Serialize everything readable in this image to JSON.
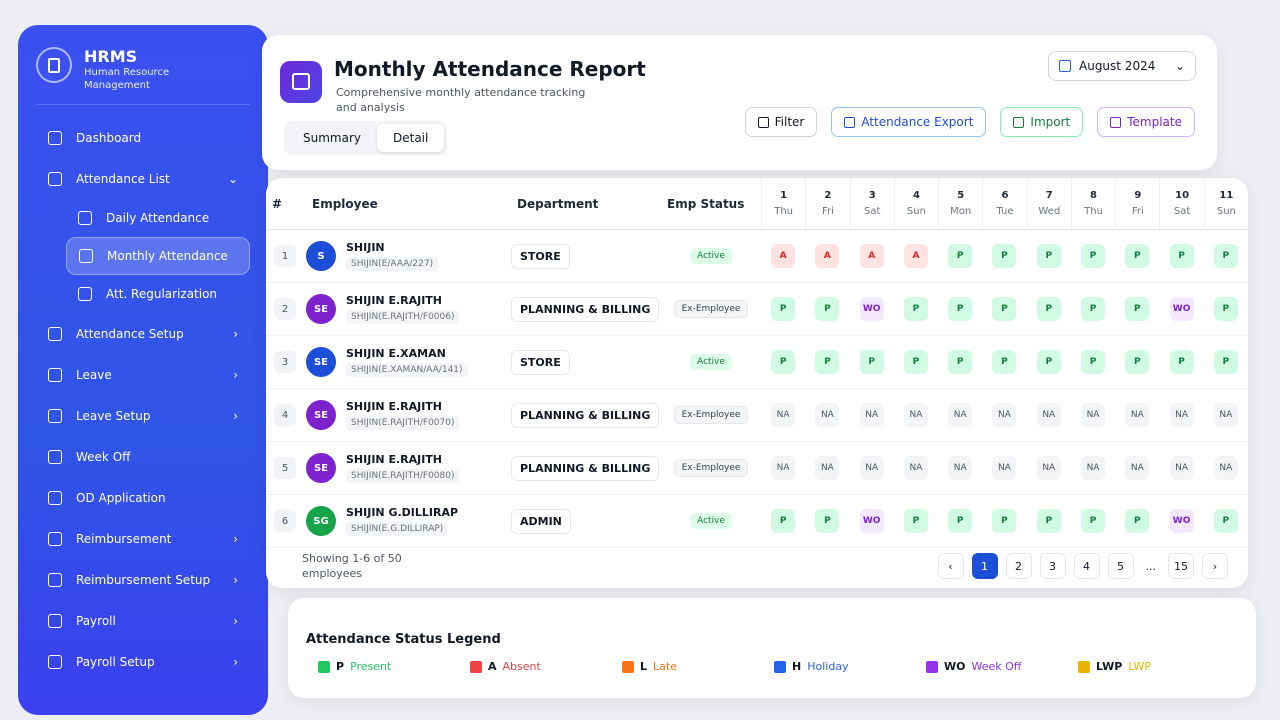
{
  "sidebar": {
    "brand": "HRMS",
    "tagline": "Human Resource Management",
    "nav": [
      {
        "label": "Dashboard"
      },
      {
        "label": "Attendance List",
        "expanded": true,
        "children": [
          {
            "label": "Daily Attendance"
          },
          {
            "label": "Monthly Attendance",
            "active": true
          },
          {
            "label": "Att. Regularization"
          }
        ]
      },
      {
        "label": "Attendance Setup",
        "submenu": true
      },
      {
        "label": "Leave",
        "submenu": true
      },
      {
        "label": "Leave Setup",
        "submenu": true
      },
      {
        "label": "Week Off"
      },
      {
        "label": "OD Application"
      },
      {
        "label": "Reimbursement",
        "submenu": true
      },
      {
        "label": "Reimbursement Setup",
        "submenu": true
      },
      {
        "label": "Payroll",
        "submenu": true
      },
      {
        "label": "Payroll Setup",
        "submenu": true
      }
    ]
  },
  "header": {
    "title": "Monthly Attendance Report",
    "subtitle": "Comprehensive monthly attendance tracking and analysis",
    "month": "August 2024",
    "tabs": [
      "Summary",
      "Detail"
    ],
    "active_tab": 1,
    "buttons": [
      "Filter",
      "Attendance Export",
      "Import",
      "Template"
    ]
  },
  "table": {
    "columns": [
      "#",
      "Employee",
      "Department",
      "Emp Status"
    ],
    "days": [
      {
        "day": "1",
        "weekday": "Thu"
      },
      {
        "day": "2",
        "weekday": "Fri"
      },
      {
        "day": "3",
        "weekday": "Sat"
      },
      {
        "day": "4",
        "weekday": "Sun"
      },
      {
        "day": "5",
        "weekday": "Mon"
      },
      {
        "day": "6",
        "weekday": "Tue"
      },
      {
        "day": "7",
        "weekday": "Wed"
      },
      {
        "day": "8",
        "weekday": "Thu"
      },
      {
        "day": "9",
        "weekday": "Fri"
      },
      {
        "day": "10",
        "weekday": "Sat"
      },
      {
        "day": "11",
        "weekday": "Sun"
      }
    ],
    "rows": [
      {
        "index": "1",
        "initials": "S",
        "avatar_color": "#1d4ed8",
        "name": "SHIJIN",
        "code": "SHIJIN(E/AAA/227)",
        "department": "STORE",
        "status": "Active",
        "marks": [
          "A",
          "A",
          "A",
          "A",
          "P",
          "P",
          "P",
          "P",
          "P",
          "P",
          "P"
        ]
      },
      {
        "index": "2",
        "initials": "SE",
        "avatar_color": "#7e22ce",
        "name": "SHIJIN E.RAJITH",
        "code": "SHIJIN(E.RAJITH/F0006)",
        "department": "PLANNING & BILLING",
        "status": "Ex-Employee",
        "marks": [
          "P",
          "P",
          "WO",
          "P",
          "P",
          "P",
          "P",
          "P",
          "P",
          "WO",
          "P"
        ]
      },
      {
        "index": "3",
        "initials": "SE",
        "avatar_color": "#1d4ed8",
        "name": "SHIJIN E.XAMAN",
        "code": "SHIJIN(E.XAMAN/AA/141)",
        "department": "STORE",
        "status": "Active",
        "marks": [
          "P",
          "P",
          "P",
          "P",
          "P",
          "P",
          "P",
          "P",
          "P",
          "P",
          "P"
        ]
      },
      {
        "index": "4",
        "initials": "SE",
        "avatar_color": "#7e22ce",
        "name": "SHIJIN E.RAJITH",
        "code": "SHIJIN(E.RAJITH/F0070)",
        "department": "PLANNING & BILLING",
        "status": "Ex-Employee",
        "marks": [
          "NA",
          "NA",
          "NA",
          "NA",
          "NA",
          "NA",
          "NA",
          "NA",
          "NA",
          "NA",
          "NA"
        ]
      },
      {
        "index": "5",
        "initials": "SE",
        "avatar_color": "#7e22ce",
        "name": "SHIJIN E.RAJITH",
        "code": "SHIJIN(E.RAJITH/F0080)",
        "department": "PLANNING & BILLING",
        "status": "Ex-Employee",
        "marks": [
          "NA",
          "NA",
          "NA",
          "NA",
          "NA",
          "NA",
          "NA",
          "NA",
          "NA",
          "NA",
          "NA"
        ]
      },
      {
        "index": "6",
        "initials": "SG",
        "avatar_color": "#16a34a",
        "name": "SHIJIN G.DILLIRAP",
        "code": "SHIJIN(E.G.DILLIRAP)",
        "department": "ADMIN",
        "status": "Active",
        "marks": [
          "P",
          "P",
          "WO",
          "P",
          "P",
          "P",
          "P",
          "P",
          "P",
          "WO",
          "P"
        ]
      }
    ],
    "summary": "Showing 1-6 of 50 employees",
    "pages": [
      "1",
      "2",
      "3",
      "4",
      "5",
      "...",
      "15"
    ],
    "current_page": 0
  },
  "legend": {
    "title": "Attendance Status Legend",
    "items": [
      {
        "code": "P",
        "label": "Present",
        "color": "#22c55e"
      },
      {
        "code": "A",
        "label": "Absent",
        "color": "#ef4444"
      },
      {
        "code": "L",
        "label": "Late",
        "color": "#f97316"
      },
      {
        "code": "H",
        "label": "Holiday",
        "color": "#2563eb"
      },
      {
        "code": "WO",
        "label": "Week Off",
        "color": "#9333ea"
      },
      {
        "code": "LWP",
        "label": "LWP",
        "color": "#eab308"
      }
    ]
  }
}
